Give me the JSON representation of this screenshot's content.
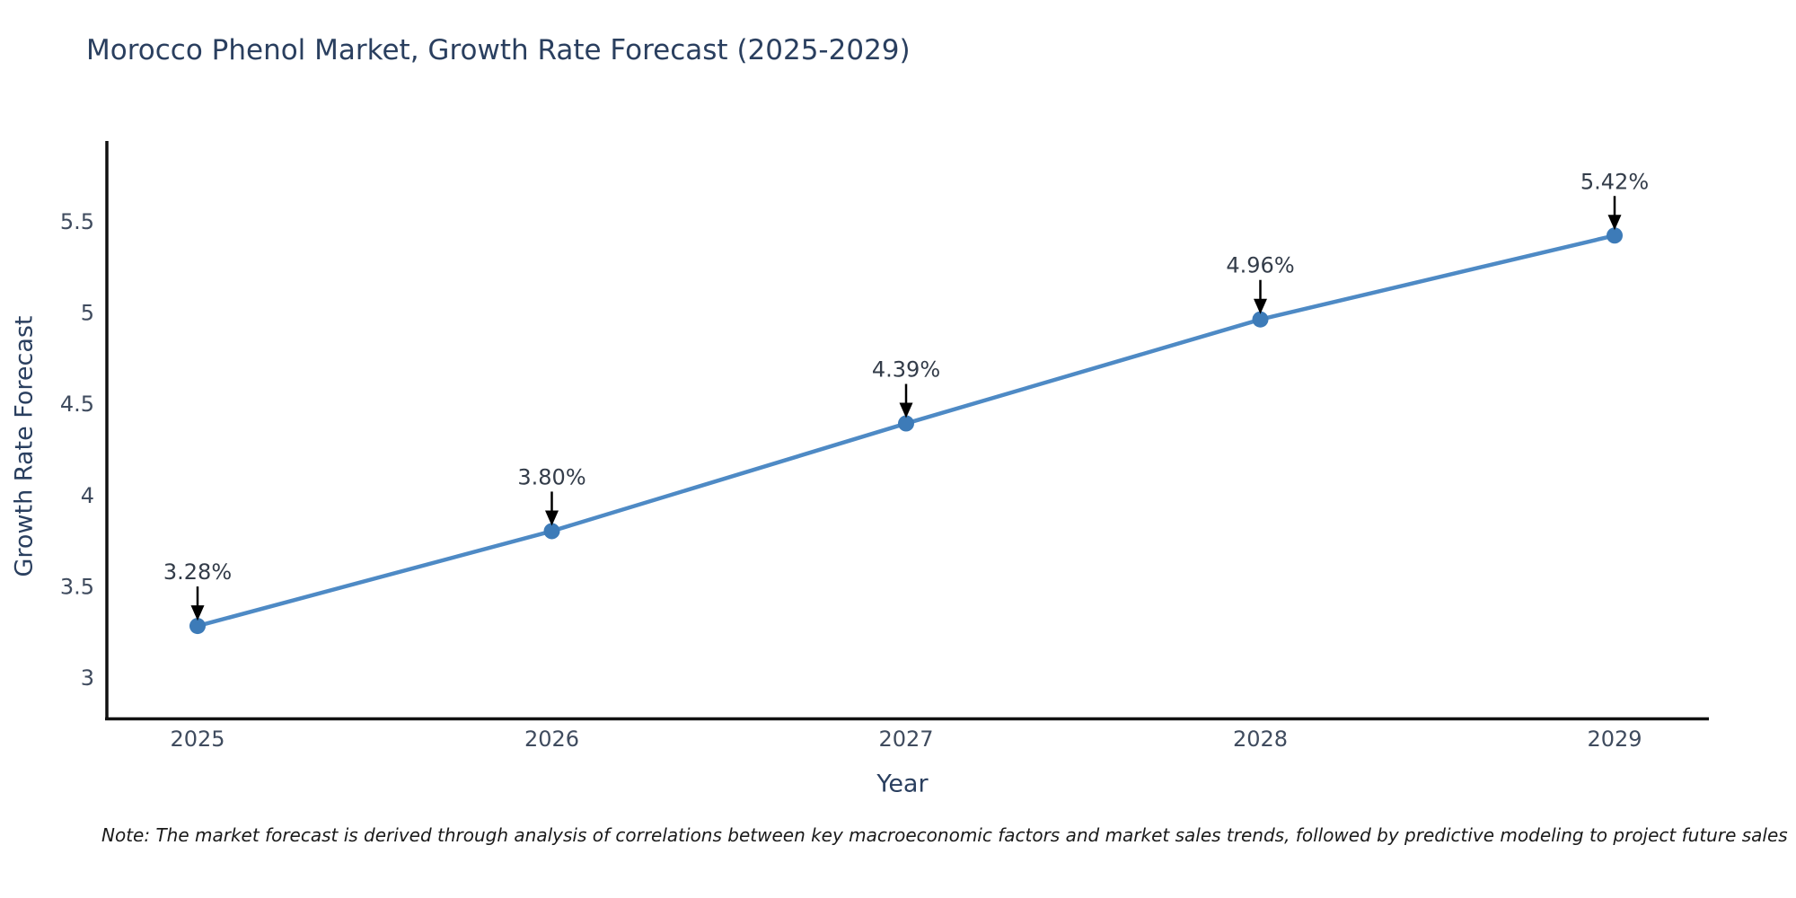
{
  "title": "Morocco Phenol Market, Growth Rate Forecast (2025-2029)",
  "note": "Note: The market forecast is derived through analysis of correlations between key macroeconomic factors and market sales trends, followed by predictive modeling to project future sales",
  "chart_data": {
    "type": "line",
    "title": "Morocco Phenol Market, Growth Rate Forecast (2025-2029)",
    "xlabel": "Year",
    "ylabel": "Growth Rate Forecast",
    "categories": [
      "2025",
      "2026",
      "2027",
      "2028",
      "2029"
    ],
    "values": [
      3.28,
      3.8,
      4.39,
      4.96,
      5.42
    ],
    "point_labels": [
      "3.28%",
      "3.80%",
      "4.39%",
      "4.96%",
      "5.42%"
    ],
    "yticks": [
      3,
      3.5,
      4,
      4.5,
      5,
      5.5
    ],
    "ytick_labels": [
      "3",
      "3.5",
      "4",
      "4.5",
      "5",
      "5.5"
    ],
    "ylim": [
      2.77,
      5.95
    ],
    "grid": false,
    "legend": "none",
    "annotation_style": "black arrow pointing down to each marker",
    "colors": {
      "line": "#4e8ac5",
      "marker": "#3d7bb8",
      "axis": "#111111",
      "arrow": "#000000",
      "title_text": "#2a3f5f",
      "tick_text": "#3f4b5e"
    }
  }
}
